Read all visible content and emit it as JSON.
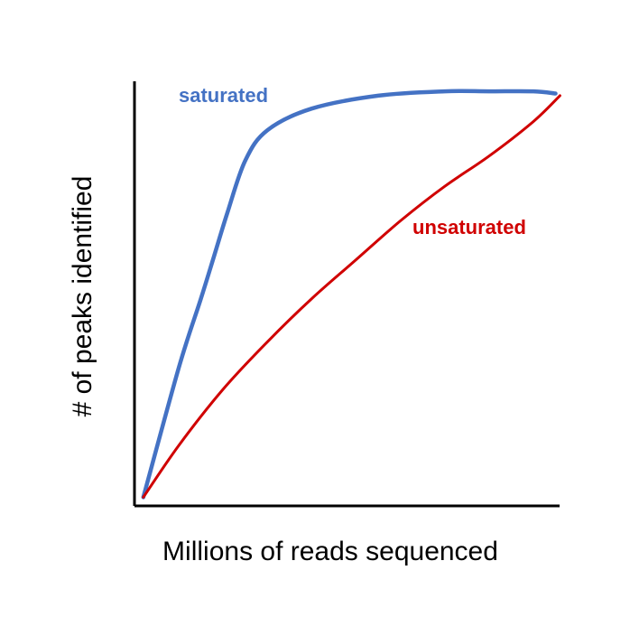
{
  "chart_data": {
    "type": "line",
    "title": "",
    "xlabel": "Millions of reads sequenced",
    "ylabel": "# of peaks identified",
    "grid": false,
    "ticks": false,
    "xlim": [
      0,
      100
    ],
    "ylim": [
      0,
      100
    ],
    "series": [
      {
        "name": "saturated",
        "color": "#4472C4",
        "points": [
          [
            2,
            2
          ],
          [
            10,
            32
          ],
          [
            15,
            48
          ],
          [
            18,
            58
          ],
          [
            21,
            68
          ],
          [
            25,
            80
          ],
          [
            30,
            87
          ],
          [
            40,
            92
          ],
          [
            55,
            95
          ],
          [
            70,
            96
          ],
          [
            80,
            96
          ],
          [
            90,
            96
          ],
          [
            95,
            95.5
          ]
        ]
      },
      {
        "name": "unsaturated",
        "color": "#D00000",
        "points": [
          [
            2,
            2
          ],
          [
            10,
            14
          ],
          [
            20,
            27
          ],
          [
            30,
            38
          ],
          [
            40,
            48
          ],
          [
            50,
            57
          ],
          [
            60,
            66
          ],
          [
            70,
            74
          ],
          [
            80,
            81
          ],
          [
            90,
            89
          ],
          [
            96,
            95
          ]
        ]
      }
    ]
  }
}
